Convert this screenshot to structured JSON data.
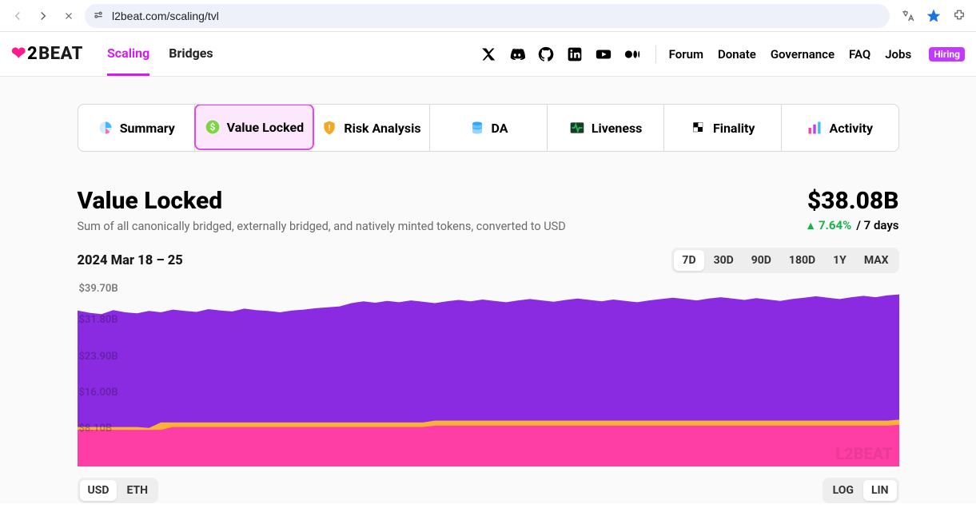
{
  "browser": {
    "url": "l2beat.com/scaling/tvl"
  },
  "logo_text": "BEAT",
  "nav": {
    "tabs": [
      {
        "label": "Scaling",
        "active": true
      },
      {
        "label": "Bridges",
        "active": false
      }
    ],
    "links": [
      "Forum",
      "Donate",
      "Governance",
      "FAQ",
      "Jobs"
    ],
    "hiring_badge": "Hiring"
  },
  "category_tabs": [
    {
      "label": "Summary",
      "icon": "pie",
      "icon_color": "#3eb9ff",
      "active": false
    },
    {
      "label": "Value Locked",
      "icon": "dollar",
      "icon_color": "#7cd641",
      "active": true
    },
    {
      "label": "Risk Analysis",
      "icon": "shield",
      "icon_color": "#f5a623",
      "active": false
    },
    {
      "label": "DA",
      "icon": "db",
      "icon_color": "#2aa9ff",
      "active": false
    },
    {
      "label": "Liveness",
      "icon": "pulse",
      "icon_color": "#2bbb5b",
      "active": false
    },
    {
      "label": "Finality",
      "icon": "flag",
      "icon_color": "#f5c518",
      "active": false
    },
    {
      "label": "Activity",
      "icon": "bars",
      "icon_color": "#e049e8",
      "active": false
    }
  ],
  "header": {
    "title": "Value Locked",
    "subtitle": "Sum of all canonically bridged, externally bridged, and natively minted tokens, converted to USD",
    "amount": "$38.08B",
    "delta_arrow": "▴",
    "delta_pct": "7.64%",
    "delta_sep": " / ",
    "delta_period": "7 days"
  },
  "chart": {
    "date_range_label": "2024 Mar 18 – 25",
    "ranges": [
      "7D",
      "30D",
      "90D",
      "180D",
      "1Y",
      "MAX"
    ],
    "active_range": "7D",
    "y_max_label": "$39.70B",
    "y_labels": [
      "$31.80B",
      "$23.90B",
      "$16.00B",
      "$8.10B"
    ],
    "y_max": 39.7,
    "y_ticks": [
      31.8,
      23.9,
      16.0,
      8.1
    ],
    "colors": {
      "series_top": "#8a2be2",
      "series_mid": "#f9b233",
      "series_bot": "#ff3ea5",
      "gridline": "#d0d0d0",
      "background": "#fafafa"
    },
    "series_top": [
      34.0,
      33.5,
      33.2,
      34.1,
      33.6,
      33.4,
      33.9,
      33.6,
      34.2,
      33.9,
      33.7,
      34.3,
      34.0,
      33.8,
      34.4,
      34.1,
      33.9,
      33.6,
      34.0,
      34.2,
      34.5,
      34.7,
      34.9,
      35.6,
      36.0,
      35.7,
      36.1,
      35.8,
      36.2,
      35.9,
      35.6,
      36.0,
      36.3,
      36.0,
      36.4,
      36.1,
      35.8,
      36.2,
      36.5,
      36.2,
      35.9,
      36.3,
      36.6,
      36.3,
      36.0,
      36.4,
      36.1,
      35.8,
      36.2,
      36.5,
      36.8,
      36.5,
      36.2,
      36.6,
      36.9,
      36.6,
      36.3,
      36.7,
      36.4,
      36.1,
      36.5,
      36.8,
      37.1,
      36.8,
      36.5,
      36.9,
      37.2,
      36.9,
      37.3,
      37.5
    ],
    "series_mid": [
      8.6,
      8.6,
      8.6,
      8.6,
      8.6,
      8.6,
      8.4,
      9.6,
      9.6,
      9.6,
      9.6,
      9.6,
      9.6,
      9.6,
      9.6,
      9.6,
      9.6,
      9.6,
      9.6,
      9.6,
      9.6,
      9.6,
      9.6,
      9.6,
      9.6,
      9.6,
      9.6,
      9.6,
      9.6,
      9.6,
      10.0,
      10.0,
      10.0,
      10.0,
      10.0,
      10.0,
      10.0,
      10.0,
      10.0,
      10.0,
      10.0,
      10.0,
      10.0,
      10.0,
      10.0,
      10.0,
      10.0,
      10.0,
      10.0,
      10.0,
      10.0,
      10.0,
      10.0,
      10.0,
      10.0,
      10.0,
      10.0,
      10.0,
      10.0,
      10.0,
      10.0,
      10.0,
      10.0,
      10.0,
      10.0,
      10.0,
      10.0,
      10.0,
      10.0,
      10.2
    ],
    "series_bot": [
      8.0,
      8.0,
      8.0,
      8.0,
      8.0,
      8.0,
      8.0,
      8.0,
      8.6,
      8.6,
      8.6,
      8.6,
      8.6,
      8.6,
      8.6,
      8.6,
      8.6,
      8.6,
      8.6,
      8.6,
      8.6,
      8.6,
      8.6,
      8.6,
      8.6,
      8.6,
      8.6,
      8.6,
      8.6,
      8.6,
      8.9,
      8.9,
      8.9,
      8.9,
      8.9,
      8.9,
      8.9,
      8.9,
      8.9,
      8.9,
      8.9,
      8.9,
      8.9,
      8.9,
      8.9,
      8.9,
      8.9,
      8.9,
      8.9,
      8.9,
      8.9,
      8.9,
      8.9,
      8.9,
      8.9,
      8.9,
      8.9,
      8.9,
      8.9,
      8.9,
      8.9,
      8.9,
      8.9,
      8.9,
      8.9,
      8.9,
      8.9,
      8.9,
      8.9,
      9.1
    ],
    "watermark": "L2BEAT"
  },
  "currency_tabs": {
    "options": [
      "USD",
      "ETH"
    ],
    "active": "USD"
  },
  "scale_tabs": {
    "options": [
      "LOG",
      "LIN"
    ],
    "active": "LIN"
  }
}
